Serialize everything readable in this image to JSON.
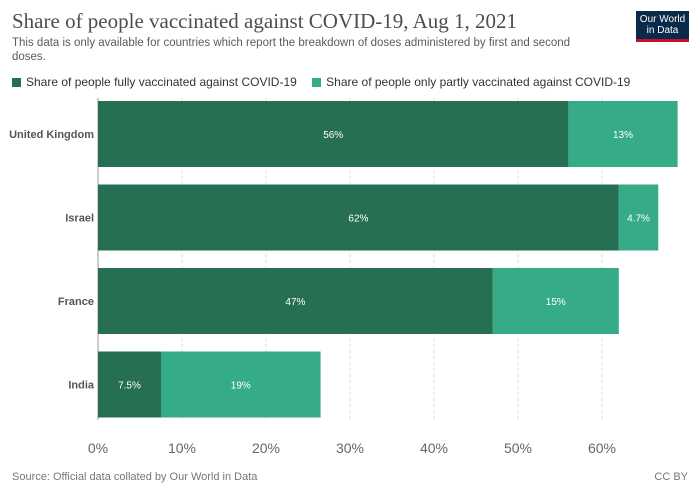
{
  "header": {
    "title": "Share of people vaccinated against COVID-19, Aug 1, 2021",
    "subtitle": "This data is only available for countries which report the breakdown of doses administered by first and second doses.",
    "logo_line1": "Our World",
    "logo_line2": "in Data"
  },
  "footer": {
    "source": "Source: Official data collated by Our World in Data",
    "license": "CC BY"
  },
  "chart_data": {
    "type": "bar",
    "orientation": "horizontal",
    "stacked": true,
    "categories": [
      "United Kingdom",
      "Israel",
      "France",
      "India"
    ],
    "series": [
      {
        "name": "Share of people fully vaccinated against COVID-19",
        "color": "#276f53",
        "values": [
          56,
          62,
          47,
          7.5
        ],
        "labels": [
          "56%",
          "62%",
          "47%",
          "7.5%"
        ]
      },
      {
        "name": "Share of people only partly vaccinated against COVID-19",
        "color": "#35ab88",
        "values": [
          13,
          4.7,
          15,
          19
        ],
        "labels": [
          "13%",
          "4.7%",
          "15%",
          "19%"
        ]
      }
    ],
    "x_ticks": [
      0,
      10,
      20,
      30,
      40,
      50,
      60
    ],
    "x_tick_labels": [
      "0%",
      "10%",
      "20%",
      "30%",
      "40%",
      "50%",
      "60%"
    ],
    "xlim": [
      0,
      69
    ],
    "grid": true,
    "legend_position": "top"
  }
}
